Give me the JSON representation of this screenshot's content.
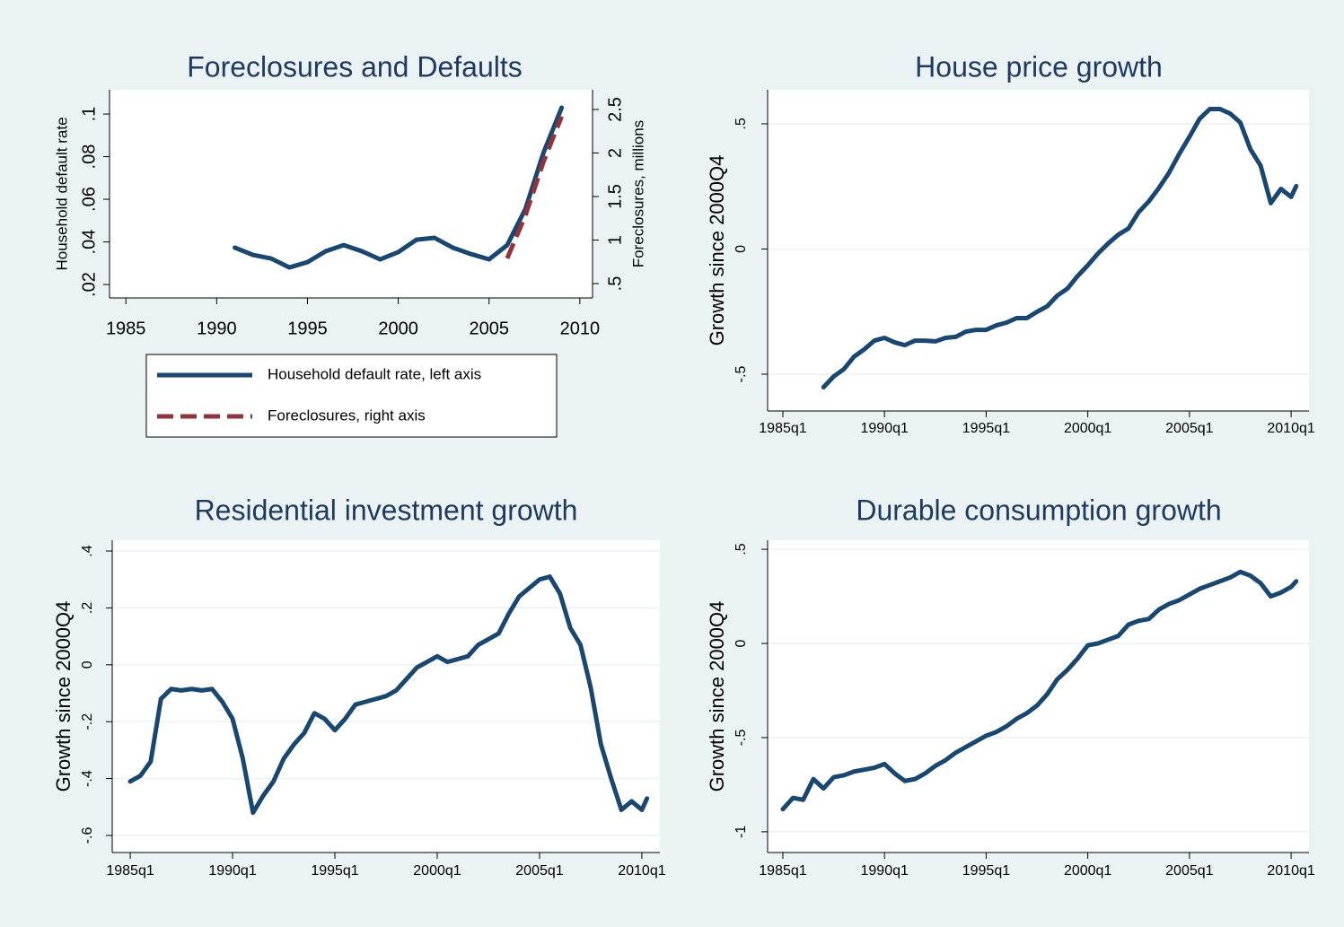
{
  "chart_data": [
    {
      "type": "line",
      "title": "Foreclosures and Defaults",
      "ylabel": "Household default rate",
      "y2label": "Foreclosures, millions",
      "x": [
        1991,
        1992,
        1993,
        1994,
        1995,
        1996,
        1997,
        1998,
        1999,
        2000,
        2001,
        2002,
        2003,
        2004,
        2005,
        2006,
        2007,
        2008,
        2009
      ],
      "series": [
        {
          "name": "Household default rate, left axis",
          "color": "#1a476f",
          "style": "solid",
          "values": [
            0.0373,
            0.0339,
            0.0322,
            0.028,
            0.0305,
            0.0356,
            0.0385,
            0.0356,
            0.0318,
            0.0352,
            0.041,
            0.0419,
            0.0373,
            0.0343,
            0.0318,
            0.0385,
            0.0554,
            0.0819,
            0.103
          ]
        },
        {
          "name": "Foreclosures, right axis",
          "color": "#90353b",
          "style": "dashed",
          "axis": "y2",
          "values": [
            null,
            null,
            null,
            null,
            null,
            null,
            null,
            null,
            null,
            null,
            null,
            null,
            null,
            null,
            null,
            0.79,
            1.28,
            1.9,
            2.42
          ]
        }
      ],
      "xlim": [
        1984.1,
        2010.7
      ],
      "xticks": [
        1985,
        1990,
        1995,
        2000,
        2005,
        2010
      ],
      "ylim": [
        0.0137,
        0.1114
      ],
      "yticks": [
        {
          "value": 0.02,
          "label": ".02"
        },
        {
          "value": 0.04,
          "label": ".04"
        },
        {
          "value": 0.06,
          "label": ".06"
        },
        {
          "value": 0.08,
          "label": ".08"
        },
        {
          "value": 0.1,
          "label": ".1"
        }
      ],
      "y2lim": [
        0.335,
        2.727
      ],
      "y2ticks": [
        {
          "value": 0.5,
          "label": ".5"
        },
        1,
        1.5,
        2,
        2.5
      ],
      "grid": false,
      "legend": "bottom"
    },
    {
      "type": "line",
      "title": "House price growth",
      "ylabel": "Growth since 2000Q4",
      "x": [
        "1987q1",
        "1987q3",
        "1988q1",
        "1988q3",
        "1989q1",
        "1989q3",
        "1990q1",
        "1990q3",
        "1991q1",
        "1991q3",
        "1992q1",
        "1992q3",
        "1993q1",
        "1993q3",
        "1994q1",
        "1994q3",
        "1995q1",
        "1995q3",
        "1996q1",
        "1996q3",
        "1997q1",
        "1997q3",
        "1998q1",
        "1998q3",
        "1999q1",
        "1999q3",
        "2000q1",
        "2000q3",
        "2001q1",
        "2001q3",
        "2002q1",
        "2002q3",
        "2003q1",
        "2003q3",
        "2004q1",
        "2004q3",
        "2005q1",
        "2005q3",
        "2006q1",
        "2006q3",
        "2007q1",
        "2007q3",
        "2008q1",
        "2008q3",
        "2009q1",
        "2009q3",
        "2010q1",
        "2010q2"
      ],
      "series": [
        {
          "color": "#1a476f",
          "values": [
            -0.552,
            -0.509,
            -0.48,
            -0.43,
            -0.401,
            -0.366,
            -0.355,
            -0.373,
            -0.384,
            -0.366,
            -0.366,
            -0.369,
            -0.355,
            -0.351,
            -0.33,
            -0.323,
            -0.323,
            -0.305,
            -0.294,
            -0.276,
            -0.276,
            -0.251,
            -0.229,
            -0.186,
            -0.158,
            -0.108,
            -0.065,
            -0.018,
            0.022,
            0.057,
            0.082,
            0.147,
            0.19,
            0.244,
            0.305,
            0.38,
            0.448,
            0.52,
            0.559,
            0.559,
            0.541,
            0.505,
            0.398,
            0.333,
            0.183,
            0.24,
            0.208,
            0.251
          ]
        }
      ],
      "xlim": [
        1984.25,
        2010.88
      ],
      "xticks": [
        {
          "value": 1985,
          "label": "1985q1"
        },
        {
          "value": 1990,
          "label": "1990q1"
        },
        {
          "value": 1995,
          "label": "1995q1"
        },
        {
          "value": 2000,
          "label": "2000q1"
        },
        {
          "value": 2005,
          "label": "2005q1"
        },
        {
          "value": 2010,
          "label": "2010q1"
        }
      ],
      "ylim": [
        -0.647,
        0.636
      ],
      "yticks": [
        {
          "value": -0.5,
          "label": "-.5"
        },
        0,
        {
          "value": 0.5,
          "label": ".5"
        }
      ],
      "grid": true
    },
    {
      "type": "line",
      "title": "Residential investment growth",
      "ylabel": "Growth since 2000Q4",
      "x": [
        "1985q1",
        "1985q3",
        "1986q1",
        "1986q3",
        "1987q1",
        "1987q3",
        "1988q1",
        "1988q3",
        "1989q1",
        "1989q3",
        "1990q1",
        "1990q3",
        "1991q1",
        "1991q3",
        "1992q1",
        "1992q3",
        "1993q1",
        "1993q3",
        "1994q1",
        "1994q3",
        "1995q1",
        "1995q3",
        "1996q1",
        "1996q3",
        "1997q1",
        "1997q3",
        "1998q1",
        "1998q3",
        "1999q1",
        "1999q3",
        "2000q1",
        "2000q3",
        "2001q1",
        "2001q3",
        "2002q1",
        "2002q3",
        "2003q1",
        "2003q3",
        "2004q1",
        "2004q3",
        "2005q1",
        "2005q3",
        "2006q1",
        "2006q3",
        "2007q1",
        "2007q3",
        "2008q1",
        "2008q3",
        "2009q1",
        "2009q3",
        "2010q1",
        "2010q2"
      ],
      "series": [
        {
          "color": "#1a476f",
          "values": [
            -0.41,
            -0.39,
            -0.34,
            -0.12,
            -0.085,
            -0.09,
            -0.085,
            -0.09,
            -0.085,
            -0.13,
            -0.19,
            -0.33,
            -0.52,
            -0.46,
            -0.41,
            -0.33,
            -0.28,
            -0.24,
            -0.17,
            -0.19,
            -0.23,
            -0.19,
            -0.14,
            -0.13,
            -0.12,
            -0.11,
            -0.09,
            -0.05,
            -0.01,
            0.01,
            0.03,
            0.01,
            0.02,
            0.03,
            0.07,
            0.09,
            0.11,
            0.18,
            0.24,
            0.27,
            0.3,
            0.31,
            0.25,
            0.13,
            0.07,
            -0.08,
            -0.28,
            -0.4,
            -0.51,
            -0.48,
            -0.51,
            -0.47
          ]
        }
      ],
      "xlim": [
        1984.12,
        2010.88
      ],
      "xticks": [
        {
          "value": 1985,
          "label": "1985q1"
        },
        {
          "value": 1990,
          "label": "1990q1"
        },
        {
          "value": 1995,
          "label": "1995q1"
        },
        {
          "value": 2000,
          "label": "2000q1"
        },
        {
          "value": 2005,
          "label": "2005q1"
        },
        {
          "value": 2010,
          "label": "2010q1"
        }
      ],
      "ylim": [
        -0.66,
        0.438
      ],
      "yticks": [
        {
          "value": -0.6,
          "label": "-.6"
        },
        {
          "value": -0.4,
          "label": "-.4"
        },
        {
          "value": -0.2,
          "label": "-.2"
        },
        0,
        {
          "value": 0.2,
          "label": ".2"
        },
        {
          "value": 0.4,
          "label": ".4"
        }
      ],
      "grid": true
    },
    {
      "type": "line",
      "title": "Durable consumption growth",
      "ylabel": "Growth since 2000Q4",
      "x": [
        "1985q1",
        "1985q3",
        "1986q1",
        "1986q3",
        "1987q1",
        "1987q3",
        "1988q1",
        "1988q3",
        "1989q1",
        "1989q3",
        "1990q1",
        "1990q3",
        "1991q1",
        "1991q3",
        "1992q1",
        "1992q3",
        "1993q1",
        "1993q3",
        "1994q1",
        "1994q3",
        "1995q1",
        "1995q3",
        "1996q1",
        "1996q3",
        "1997q1",
        "1997q3",
        "1998q1",
        "1998q3",
        "1999q1",
        "1999q3",
        "2000q1",
        "2000q3",
        "2001q1",
        "2001q3",
        "2002q1",
        "2002q3",
        "2003q1",
        "2003q3",
        "2004q1",
        "2004q3",
        "2005q1",
        "2005q3",
        "2006q1",
        "2006q3",
        "2007q1",
        "2007q3",
        "2008q1",
        "2008q3",
        "2009q1",
        "2009q3",
        "2010q1",
        "2010q2"
      ],
      "series": [
        {
          "color": "#1a476f",
          "values": [
            -0.88,
            -0.82,
            -0.83,
            -0.72,
            -0.77,
            -0.71,
            -0.7,
            -0.68,
            -0.67,
            -0.66,
            -0.64,
            -0.69,
            -0.73,
            -0.72,
            -0.69,
            -0.65,
            -0.62,
            -0.58,
            -0.55,
            -0.52,
            -0.49,
            -0.47,
            -0.44,
            -0.4,
            -0.37,
            -0.33,
            -0.27,
            -0.19,
            -0.14,
            -0.08,
            -0.01,
            0.0,
            0.02,
            0.04,
            0.1,
            0.12,
            0.13,
            0.18,
            0.21,
            0.23,
            0.26,
            0.29,
            0.31,
            0.33,
            0.35,
            0.38,
            0.36,
            0.32,
            0.25,
            0.27,
            0.3,
            0.33
          ]
        }
      ],
      "xlim": [
        1984.25,
        2010.88
      ],
      "xticks": [
        {
          "value": 1985,
          "label": "1985q1"
        },
        {
          "value": 1990,
          "label": "1990q1"
        },
        {
          "value": 1995,
          "label": "1995q1"
        },
        {
          "value": 2000,
          "label": "2000q1"
        },
        {
          "value": 2005,
          "label": "2005q1"
        },
        {
          "value": 2010,
          "label": "2010q1"
        }
      ],
      "ylim": [
        -1.11,
        0.548
      ],
      "yticks": [
        -1,
        {
          "value": -0.5,
          "label": "-.5"
        },
        0,
        {
          "value": 0.5,
          "label": ".5"
        }
      ],
      "grid": true
    }
  ]
}
